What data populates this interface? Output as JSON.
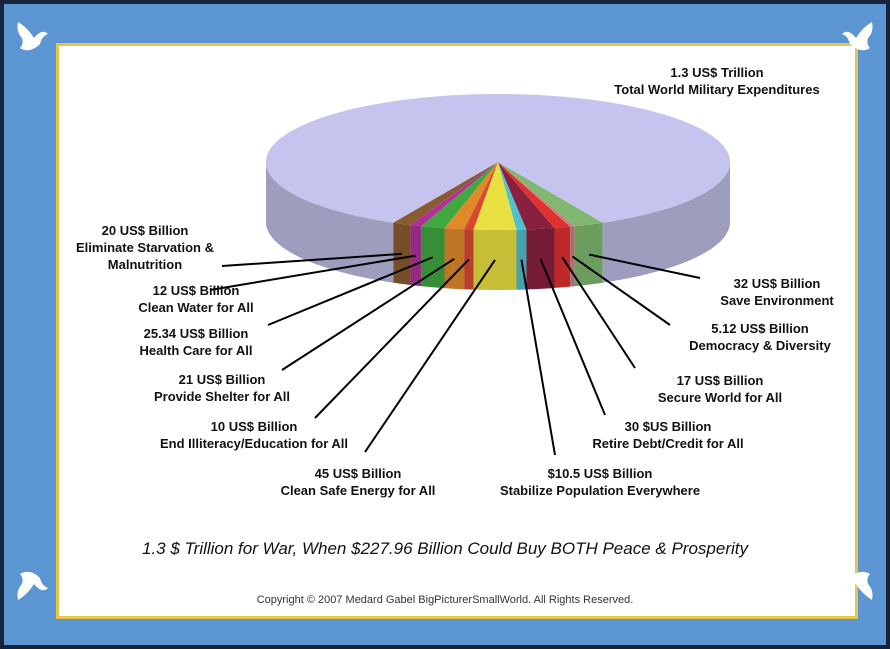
{
  "chart_data": {
    "type": "pie",
    "title": "1.3 $ Trillion for War, When $227.96 Billion Could Buy BOTH Peace & Prosperity",
    "categories": [
      "Eliminate Starvation & Malnutrition",
      "Clean Water for All",
      "Health Care for All",
      "Provide Shelter for All",
      "End Illiteracy/Education for All",
      "Clean Safe Energy for All",
      "Stabilize Population Everywhere",
      "Retire Debt/Credit for All",
      "Secure World for All",
      "Democracy & Diversity",
      "Save Environment",
      "Total World Military Expenditures"
    ],
    "values": [
      20,
      12,
      25.34,
      21,
      10,
      45,
      10.5,
      30,
      17,
      5.12,
      32,
      1300
    ],
    "value_labels": [
      "20 US$ Billion",
      "12 US$ Billion",
      "25.34 US$ Billion",
      "21 US$ Billion",
      "10 US$ Billion",
      "45 US$ Billion",
      "$10.5 US$ Billion",
      "30 $US Billion",
      "17 US$ Billion",
      "5.12 US$ Billion",
      "32 US$ Billion",
      "1.3 US$ Trillion"
    ],
    "colors": [
      "#8a5a30",
      "#b0309a",
      "#40a840",
      "#e08a2a",
      "#d84a30",
      "#e8e040",
      "#50c0d0",
      "#8a2040",
      "#e03030",
      "#c88080",
      "#80b870",
      "#c4c4ee"
    ]
  },
  "copyright": "Copyright © 2007 Medard Gabel BigPicturerSmallWorld.  All Rights Reserved."
}
